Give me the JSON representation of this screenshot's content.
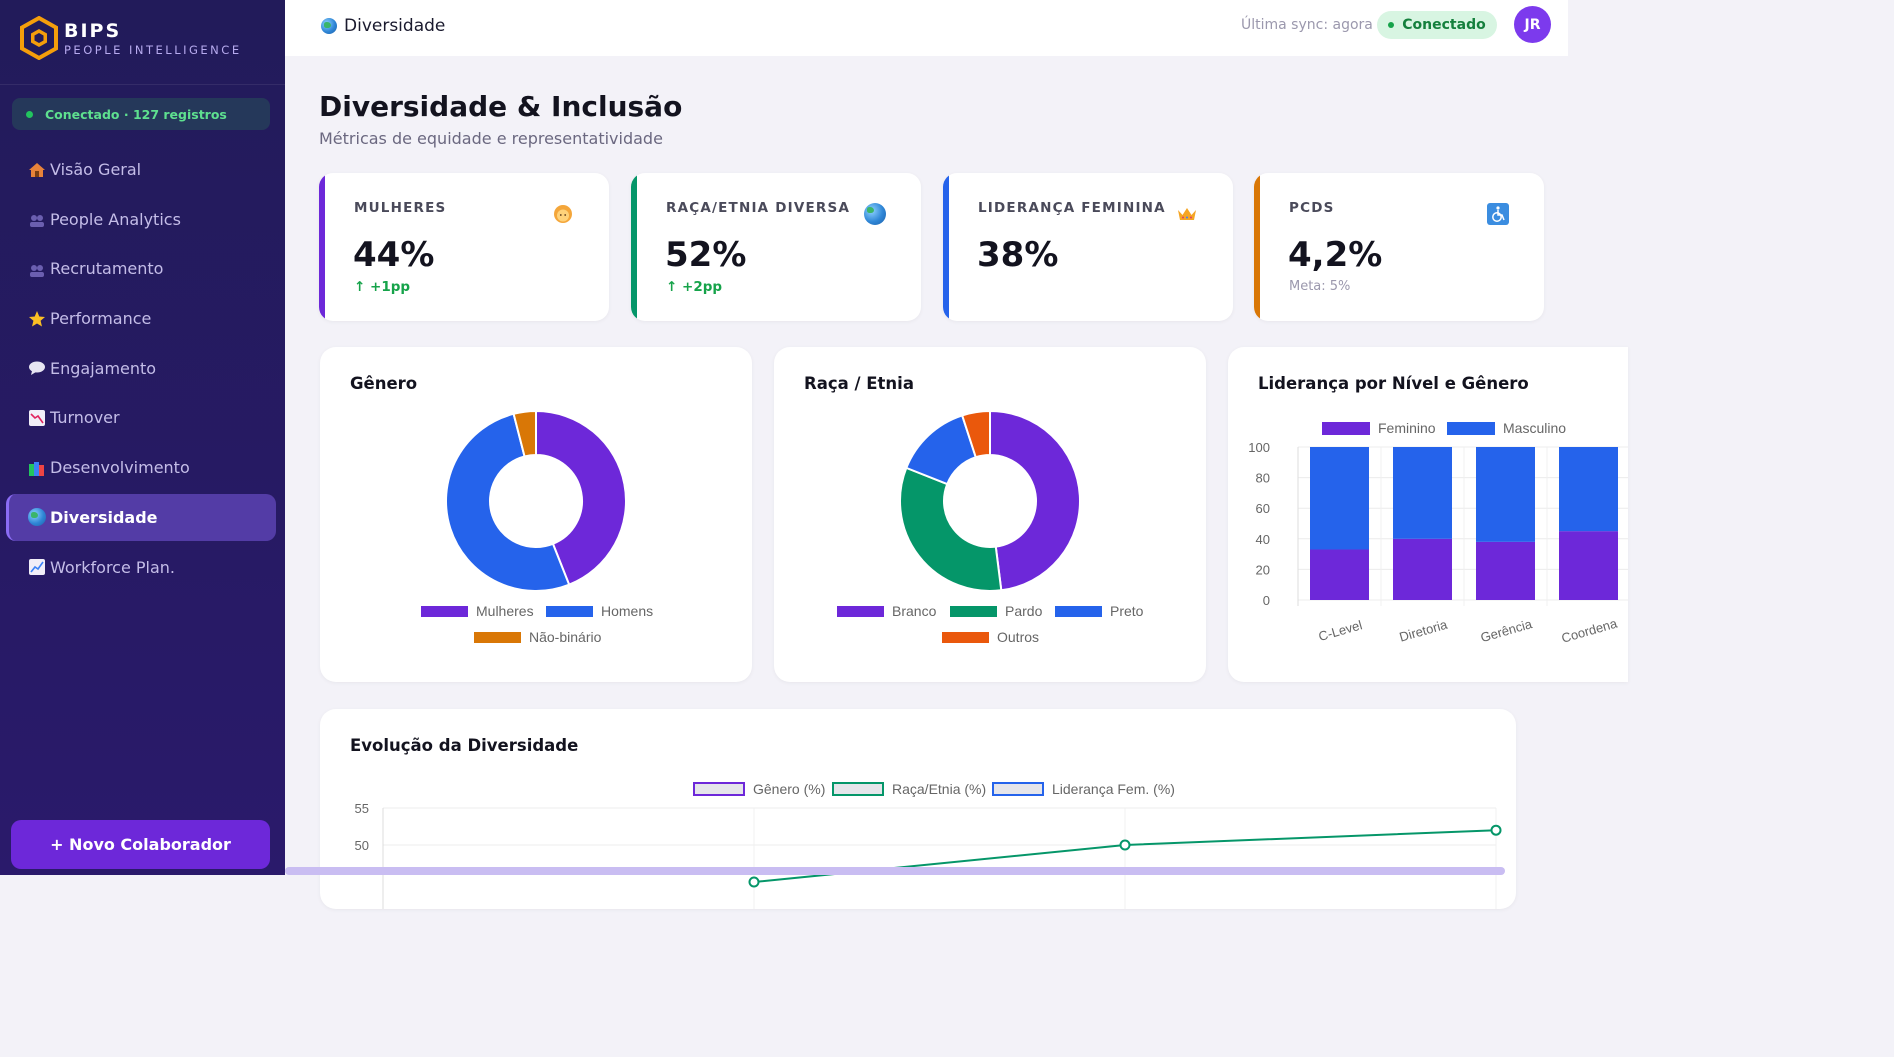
{
  "brand": {
    "name": "BIPS",
    "subtitle": "PEOPLE INTELLIGENCE"
  },
  "sidebar": {
    "connection": "Conectado · 127 registros",
    "items": [
      {
        "label": "Visão Geral",
        "icon": "house-icon"
      },
      {
        "label": "People Analytics",
        "icon": "people-icon"
      },
      {
        "label": "Recrutamento",
        "icon": "people-icon"
      },
      {
        "label": "Performance",
        "icon": "star-icon"
      },
      {
        "label": "Engajamento",
        "icon": "speech-bubble-icon"
      },
      {
        "label": "Turnover",
        "icon": "chart-down-icon"
      },
      {
        "label": "Desenvolvimento",
        "icon": "books-icon"
      },
      {
        "label": "Diversidade",
        "icon": "globe-icon",
        "active": true
      },
      {
        "label": "Workforce Plan.",
        "icon": "chart-up-icon"
      }
    ],
    "new_button": "+ Novo Colaborador"
  },
  "topbar": {
    "breadcrumb": "Diversidade",
    "sync": "Última sync: agora",
    "status": "Conectado",
    "avatar": "JR"
  },
  "page": {
    "title": "Diversidade & Inclusão",
    "subtitle": "Métricas de equidade e representatividade"
  },
  "kpis": [
    {
      "label": "MULHERES",
      "value": "44%",
      "delta": "↑ +1pp",
      "color": "#6d28d9",
      "icon": "woman-icon"
    },
    {
      "label": "RAÇA/ETNIA DIVERSA",
      "value": "52%",
      "delta": "↑ +2pp",
      "color": "#059669",
      "icon": "globe-icon"
    },
    {
      "label": "LIDERANÇA FEMININA",
      "value": "38%",
      "color": "#2563eb",
      "icon": "crown-icon"
    },
    {
      "label": "PCDS",
      "value": "4,2%",
      "meta": "Meta: 5%",
      "color": "#d97706",
      "icon": "wheelchair-icon"
    }
  ],
  "cards": {
    "gender_title": "Gênero",
    "race_title": "Raça / Etnia",
    "leadership_title": "Liderança por Nível e Gênero",
    "evolution_title": "Evolução da Diversidade"
  },
  "colors": {
    "purple": "#6d28d9",
    "blue": "#2563eb",
    "green": "#059669",
    "orange": "#d97706",
    "red_orange": "#ea580c"
  },
  "chart_data": [
    {
      "type": "pie",
      "title": "Gênero",
      "categories": [
        "Mulheres",
        "Homens",
        "Não-binário"
      ],
      "values": [
        44,
        52,
        4
      ],
      "colors": [
        "#6d28d9",
        "#2563eb",
        "#d97706"
      ],
      "legend": "bottom"
    },
    {
      "type": "pie",
      "title": "Raça / Etnia",
      "categories": [
        "Branco",
        "Pardo",
        "Preto",
        "Outros"
      ],
      "values": [
        48,
        33,
        14,
        5
      ],
      "colors": [
        "#6d28d9",
        "#059669",
        "#2563eb",
        "#ea580c"
      ],
      "legend": "bottom"
    },
    {
      "type": "bar",
      "stacked": true,
      "title": "Liderança por Nível e Gênero",
      "categories": [
        "C-Level",
        "Diretoria",
        "Gerência",
        "Coordena"
      ],
      "series": [
        {
          "name": "Feminino",
          "values": [
            33,
            40,
            38,
            45
          ],
          "color": "#6d28d9"
        },
        {
          "name": "Masculino",
          "values": [
            67,
            60,
            62,
            55
          ],
          "color": "#2563eb"
        }
      ],
      "yticks": [
        0,
        20,
        40,
        60,
        80,
        100
      ],
      "ylim": [
        0,
        100
      ],
      "legend": "top"
    },
    {
      "type": "line",
      "title": "Evolução da Diversidade",
      "series": [
        {
          "name": "Gênero (%)",
          "color": "#6d28d9"
        },
        {
          "name": "Raça/Etnia (%)",
          "values": [
            45,
            50,
            52
          ],
          "color": "#059669"
        },
        {
          "name": "Liderança Fem. (%)",
          "color": "#2563eb"
        }
      ],
      "yticks": [
        50,
        55
      ],
      "legend": "top"
    }
  ]
}
